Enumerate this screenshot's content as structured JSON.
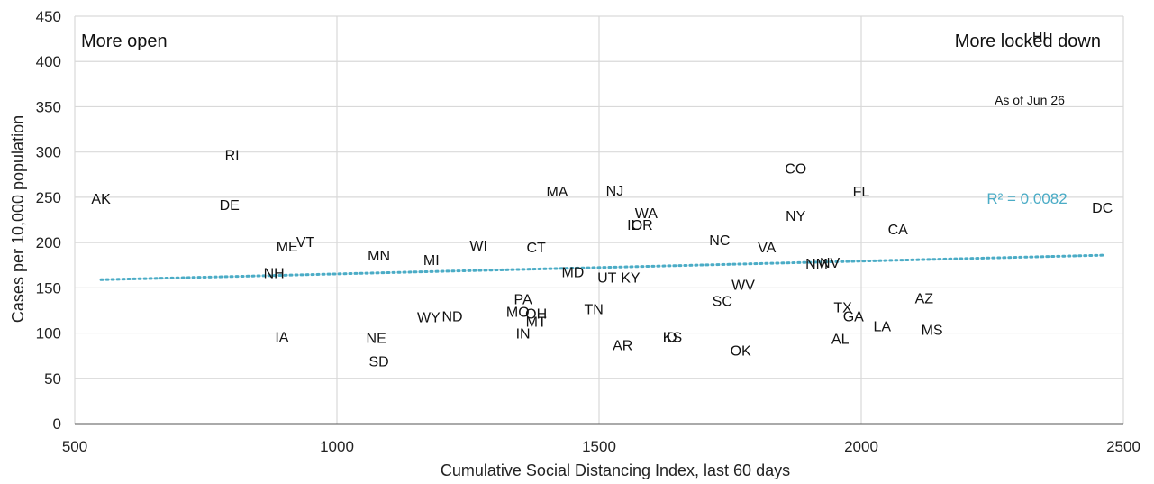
{
  "chart_data": {
    "type": "scatter",
    "xlabel": "Cumulative Social Distancing Index, last 60 days",
    "ylabel": "Cases per 10,000 population",
    "xlim": [
      500,
      2500
    ],
    "ylim": [
      0,
      450
    ],
    "x_ticks": [
      "500",
      "1000",
      "1500",
      "2000",
      "2500"
    ],
    "y_ticks": [
      "0",
      "50",
      "100",
      "150",
      "200",
      "250",
      "300",
      "350",
      "400",
      "450"
    ],
    "grid": "vertical and horizontal",
    "annotations": {
      "left": "More open",
      "right": "More locked down",
      "as_of": "As of Jun 26"
    },
    "trendline": {
      "label": "R² = 0.0082",
      "color": "#4bacc6",
      "x": [
        550,
        2460
      ],
      "y": [
        159,
        186
      ]
    },
    "points": [
      {
        "label": "HI",
        "x": 2340,
        "y": 428
      },
      {
        "label": "RI",
        "x": 800,
        "y": 297
      },
      {
        "label": "CO",
        "x": 1875,
        "y": 282
      },
      {
        "label": "AK",
        "x": 550,
        "y": 249
      },
      {
        "label": "MA",
        "x": 1420,
        "y": 257
      },
      {
        "label": "NJ",
        "x": 1530,
        "y": 258
      },
      {
        "label": "FL",
        "x": 2000,
        "y": 257
      },
      {
        "label": "DE",
        "x": 795,
        "y": 242
      },
      {
        "label": "DC",
        "x": 2460,
        "y": 239
      },
      {
        "label": "WA",
        "x": 1590,
        "y": 233
      },
      {
        "label": "NY",
        "x": 1875,
        "y": 230
      },
      {
        "label": "IL",
        "x": 1565,
        "y": 220
      },
      {
        "label": "OR",
        "x": 1582,
        "y": 220
      },
      {
        "label": "CA",
        "x": 2070,
        "y": 215
      },
      {
        "label": "NC",
        "x": 1730,
        "y": 203
      },
      {
        "label": "VT",
        "x": 940,
        "y": 201
      },
      {
        "label": "ME",
        "x": 905,
        "y": 196
      },
      {
        "label": "WI",
        "x": 1270,
        "y": 197
      },
      {
        "label": "CT",
        "x": 1380,
        "y": 195
      },
      {
        "label": "VA",
        "x": 1820,
        "y": 195
      },
      {
        "label": "MN",
        "x": 1080,
        "y": 186
      },
      {
        "label": "MI",
        "x": 1180,
        "y": 181
      },
      {
        "label": "NM",
        "x": 1915,
        "y": 177
      },
      {
        "label": "NV",
        "x": 1940,
        "y": 178
      },
      {
        "label": "MD",
        "x": 1450,
        "y": 168
      },
      {
        "label": "NH",
        "x": 880,
        "y": 167
      },
      {
        "label": "UT",
        "x": 1515,
        "y": 162
      },
      {
        "label": "KY",
        "x": 1560,
        "y": 162
      },
      {
        "label": "WV",
        "x": 1775,
        "y": 154
      },
      {
        "label": "SC",
        "x": 1735,
        "y": 136
      },
      {
        "label": "AZ",
        "x": 2120,
        "y": 139
      },
      {
        "label": "PA",
        "x": 1355,
        "y": 138
      },
      {
        "label": "TX",
        "x": 1965,
        "y": 129
      },
      {
        "label": "TN",
        "x": 1490,
        "y": 127
      },
      {
        "label": "MO",
        "x": 1345,
        "y": 124
      },
      {
        "label": "OH",
        "x": 1380,
        "y": 122
      },
      {
        "label": "GA",
        "x": 1985,
        "y": 119
      },
      {
        "label": "WY",
        "x": 1175,
        "y": 118
      },
      {
        "label": "ND",
        "x": 1220,
        "y": 119
      },
      {
        "label": "MT",
        "x": 1380,
        "y": 113
      },
      {
        "label": "LA",
        "x": 2040,
        "y": 108
      },
      {
        "label": "MS",
        "x": 2135,
        "y": 104
      },
      {
        "label": "IN",
        "x": 1355,
        "y": 100
      },
      {
        "label": "IA",
        "x": 895,
        "y": 96
      },
      {
        "label": "NE",
        "x": 1075,
        "y": 95
      },
      {
        "label": "KS",
        "x": 1640,
        "y": 96
      },
      {
        "label": "ID",
        "x": 1635,
        "y": 96
      },
      {
        "label": "AL",
        "x": 1960,
        "y": 94
      },
      {
        "label": "AR",
        "x": 1545,
        "y": 87
      },
      {
        "label": "OK",
        "x": 1770,
        "y": 81
      },
      {
        "label": "SD",
        "x": 1080,
        "y": 69
      }
    ]
  }
}
